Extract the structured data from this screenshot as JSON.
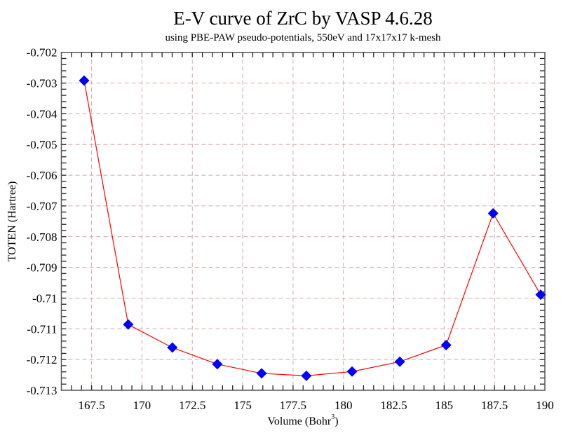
{
  "chart_data": {
    "type": "line",
    "title": "E-V curve of ZrC by VASP 4.6.28",
    "subtitle": "using PBE-PAW pseudo-potentials, 550eV and 17x17x17 k-mesh",
    "xlabel": "Volume (Bohr",
    "xlabel_superscript": "3",
    "xlabel_suffix": ")",
    "ylabel": "TOTEN (Hartree)",
    "xlim": [
      166,
      190
    ],
    "ylim": [
      -0.713,
      -0.702
    ],
    "xticks": [
      167.5,
      170,
      172.5,
      175,
      177.5,
      180,
      182.5,
      185,
      187.5,
      190
    ],
    "xtick_labels": [
      "167.5",
      "170",
      "172.5",
      "175",
      "177.5",
      "180",
      "182.5",
      "185",
      "187.5",
      "190"
    ],
    "xminor_step": 0.5,
    "yticks": [
      -0.702,
      -0.703,
      -0.704,
      -0.705,
      -0.706,
      -0.707,
      -0.708,
      -0.709,
      -0.71,
      -0.711,
      -0.712,
      -0.713
    ],
    "ytick_labels": [
      "-0.702",
      "-0.703",
      "-0.704",
      "-0.705",
      "-0.706",
      "-0.707",
      "-0.708",
      "-0.709",
      "-0.71",
      "-0.711",
      "-0.712",
      "-0.713"
    ],
    "yminor_step": 0.0002,
    "grid": true,
    "legend": "none",
    "series": [
      {
        "name": "TOTEN",
        "line_color": "#ff0000",
        "marker": "diamond",
        "marker_color": "#0000ff",
        "x": [
          167.13,
          169.32,
          171.51,
          173.74,
          175.94,
          178.16,
          180.43,
          182.8,
          185.1,
          187.43,
          189.79
        ],
        "y": [
          -0.70292,
          -0.71086,
          -0.71161,
          -0.71215,
          -0.71245,
          -0.71253,
          -0.71239,
          -0.71207,
          -0.71153,
          -0.70724,
          -0.70989
        ]
      }
    ]
  }
}
